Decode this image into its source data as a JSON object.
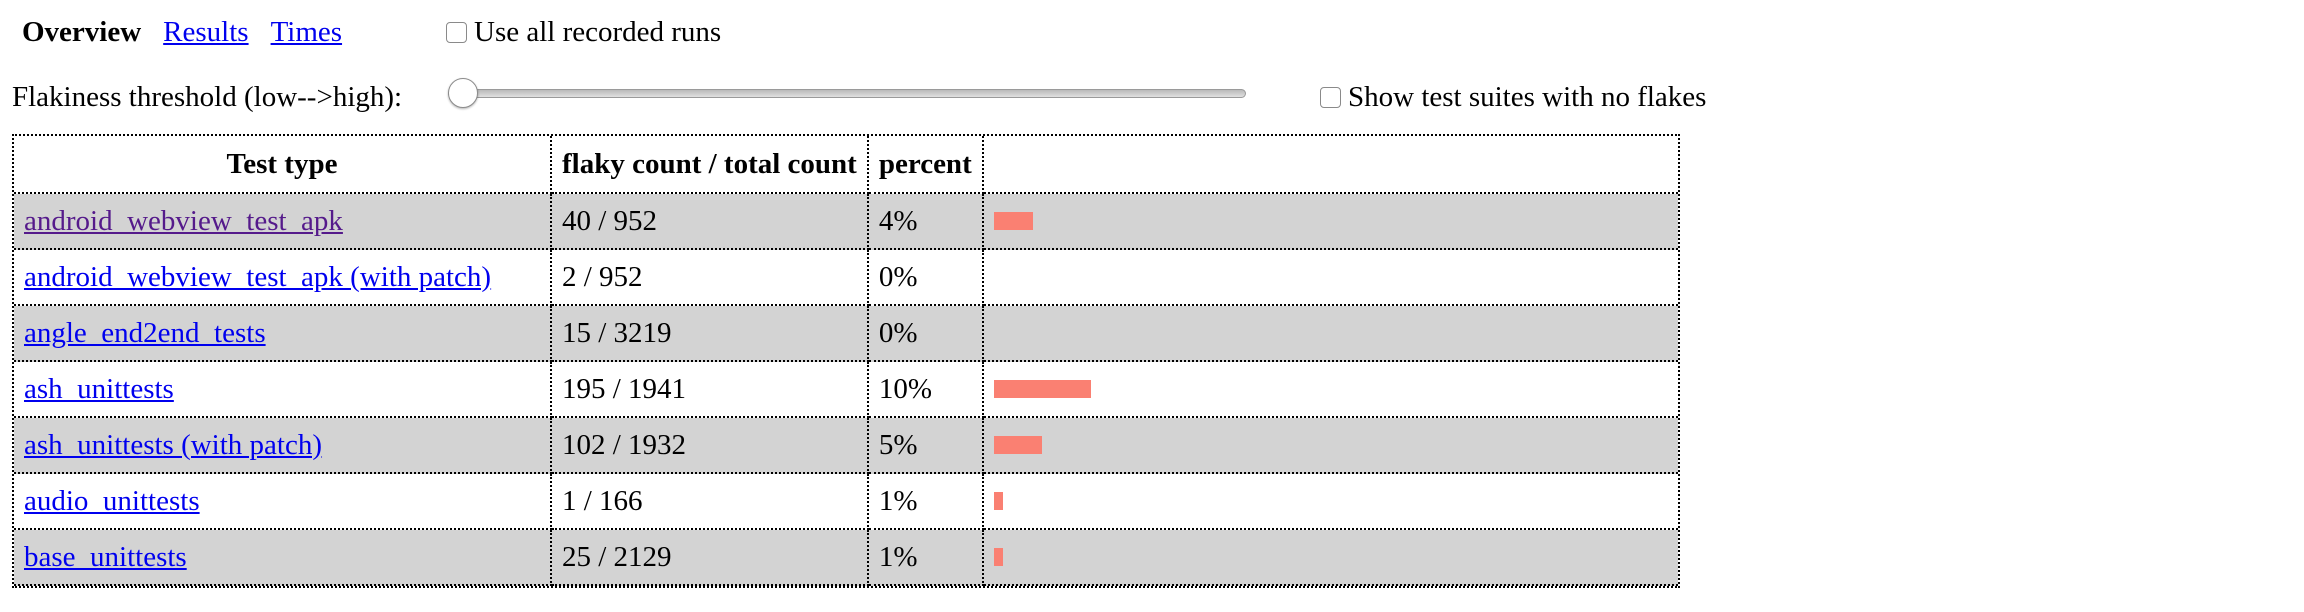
{
  "nav": {
    "current": "Overview",
    "links": [
      "Results",
      "Times"
    ]
  },
  "options": {
    "use_all_runs_label": "Use all recorded runs",
    "threshold_label": "Flakiness threshold (low-->high):",
    "threshold_value": 0,
    "show_no_flakes_label": "Show test suites with no flakes"
  },
  "table": {
    "headers": {
      "type": "Test type",
      "count": "flaky count / total count",
      "percent": "percent",
      "bar": ""
    },
    "rows": [
      {
        "type": "android_webview_test_apk",
        "count": "40 / 952",
        "percent": "4%",
        "bar_percent": 4,
        "visited": true
      },
      {
        "type": "android_webview_test_apk (with patch)",
        "count": "2 / 952",
        "percent": "0%",
        "bar_percent": 0,
        "visited": false
      },
      {
        "type": "angle_end2end_tests",
        "count": "15 / 3219",
        "percent": "0%",
        "bar_percent": 0,
        "visited": false
      },
      {
        "type": "ash_unittests",
        "count": "195 / 1941",
        "percent": "10%",
        "bar_percent": 10,
        "visited": false
      },
      {
        "type": "ash_unittests (with patch)",
        "count": "102 / 1932",
        "percent": "5%",
        "bar_percent": 5,
        "visited": false
      },
      {
        "type": "audio_unittests",
        "count": "1 / 166",
        "percent": "1%",
        "bar_percent": 1,
        "visited": false
      },
      {
        "type": "base_unittests",
        "count": "25 / 2129",
        "percent": "1%",
        "bar_percent": 1,
        "visited": false
      }
    ]
  },
  "colors": {
    "bar": "#fa8072",
    "alt_row": "#d3d3d3",
    "link": "#0000ee",
    "visited_link": "#551a8b"
  }
}
